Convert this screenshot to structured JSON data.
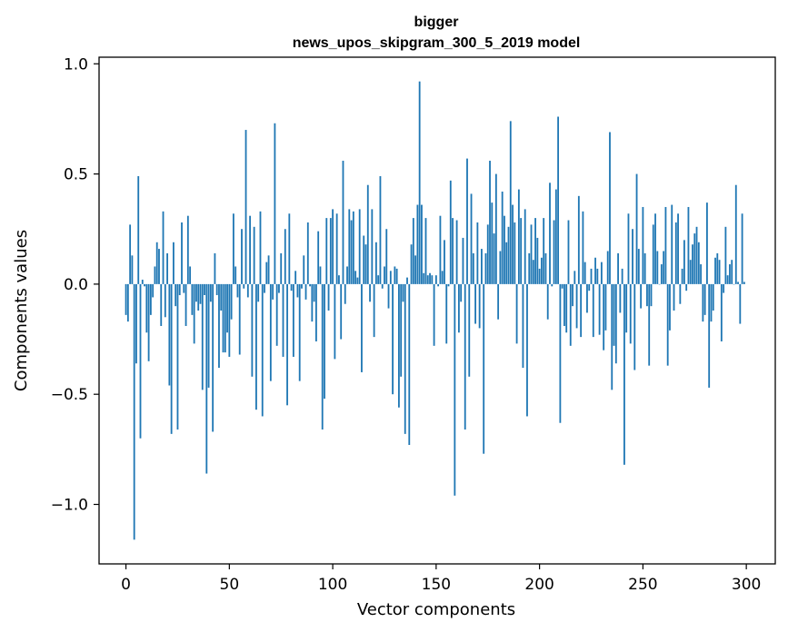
{
  "chart_data": {
    "type": "bar",
    "title": [
      "bigger",
      "news_upos_skipgram_300_5_2019 model"
    ],
    "xlabel": "Vector components",
    "ylabel": "Components values",
    "xlim": [
      -13,
      314
    ],
    "ylim": [
      -1.27,
      1.03
    ],
    "x_ticks": [
      0,
      50,
      100,
      150,
      200,
      250,
      300
    ],
    "x_tick_labels": [
      "0",
      "50",
      "100",
      "150",
      "200",
      "250",
      "300"
    ],
    "y_ticks": [
      -1.0,
      -0.5,
      0.0,
      0.5,
      1.0
    ],
    "y_tick_labels": [
      "−1.0",
      "−0.5",
      "0.0",
      "0.5",
      "1.0"
    ],
    "bar_color": "#1f77b4",
    "series": [
      {
        "name": "Components values",
        "values": [
          -0.14,
          -0.17,
          0.27,
          0.13,
          -1.16,
          -0.36,
          0.49,
          -0.7,
          0.02,
          -0.01,
          -0.22,
          -0.35,
          -0.14,
          -0.06,
          0.08,
          0.19,
          0.16,
          -0.19,
          0.33,
          -0.15,
          0.14,
          -0.46,
          -0.68,
          0.19,
          -0.1,
          -0.66,
          -0.05,
          0.28,
          -0.04,
          -0.19,
          0.31,
          0.08,
          -0.14,
          -0.27,
          -0.08,
          -0.12,
          -0.09,
          -0.48,
          -0.05,
          -0.86,
          -0.47,
          -0.08,
          -0.67,
          0.14,
          -0.05,
          -0.38,
          -0.12,
          -0.31,
          -0.31,
          -0.22,
          -0.33,
          -0.16,
          0.32,
          0.08,
          -0.06,
          -0.32,
          0.25,
          -0.02,
          0.7,
          -0.06,
          0.31,
          -0.42,
          0.26,
          -0.57,
          -0.08,
          0.33,
          -0.6,
          -0.04,
          0.1,
          0.13,
          -0.44,
          -0.07,
          0.73,
          -0.28,
          -0.04,
          0.14,
          -0.33,
          0.25,
          -0.55,
          0.32,
          -0.03,
          -0.33,
          0.06,
          -0.06,
          -0.44,
          -0.02,
          0.13,
          -0.07,
          0.28,
          -0.01,
          -0.17,
          -0.08,
          -0.26,
          0.24,
          0.08,
          -0.66,
          -0.52,
          0.3,
          -0.12,
          0.3,
          0.34,
          -0.34,
          0.32,
          0.04,
          -0.25,
          0.56,
          -0.09,
          0.08,
          0.34,
          0.29,
          0.33,
          0.06,
          0.03,
          0.34,
          -0.4,
          0.22,
          0.18,
          0.45,
          -0.08,
          0.34,
          -0.24,
          0.19,
          0.04,
          0.49,
          -0.02,
          0.08,
          0.25,
          -0.11,
          0.06,
          -0.5,
          0.08,
          0.07,
          -0.56,
          -0.42,
          -0.08,
          -0.68,
          0.03,
          -0.73,
          0.18,
          0.3,
          0.13,
          0.36,
          0.92,
          0.36,
          0.05,
          0.3,
          0.04,
          0.05,
          0.04,
          -0.28,
          0.04,
          -0.01,
          0.31,
          0.06,
          0.2,
          -0.27,
          -0.01,
          0.47,
          0.3,
          -0.96,
          0.29,
          -0.22,
          -0.08,
          0.21,
          -0.66,
          0.57,
          -0.42,
          0.41,
          0.14,
          -0.18,
          0.28,
          -0.2,
          0.16,
          -0.77,
          0.14,
          0.27,
          0.56,
          0.37,
          0.23,
          0.5,
          -0.16,
          0.15,
          0.42,
          0.31,
          0.19,
          0.26,
          0.74,
          0.36,
          0.28,
          -0.27,
          0.43,
          0.3,
          -0.38,
          0.34,
          -0.6,
          0.14,
          0.27,
          0.11,
          0.3,
          0.21,
          0.07,
          0.12,
          0.3,
          0.14,
          -0.16,
          0.46,
          -0.01,
          0.29,
          0.43,
          0.76,
          -0.63,
          -0.02,
          -0.19,
          -0.22,
          0.29,
          -0.28,
          -0.1,
          0.06,
          -0.2,
          0.4,
          -0.24,
          0.33,
          0.1,
          -0.13,
          -0.03,
          0.07,
          -0.24,
          0.12,
          0.07,
          -0.23,
          0.1,
          -0.3,
          -0.21,
          0.15,
          0.69,
          -0.48,
          -0.28,
          -0.36,
          0.14,
          -0.13,
          0.07,
          -0.82,
          -0.22,
          0.32,
          -0.27,
          0.25,
          -0.39,
          0.5,
          0.16,
          -0.11,
          0.35,
          0.14,
          -0.1,
          -0.37,
          -0.1,
          0.27,
          0.32,
          0.15,
          0.0,
          0.09,
          0.15,
          0.35,
          -0.37,
          -0.21,
          0.36,
          -0.12,
          0.28,
          0.32,
          -0.09,
          0.07,
          0.2,
          -0.03,
          0.35,
          0.11,
          0.18,
          0.23,
          0.26,
          0.19,
          0.09,
          -0.17,
          -0.14,
          0.37,
          -0.47,
          -0.17,
          -0.12,
          0.12,
          0.14,
          0.11,
          -0.26,
          -0.04,
          0.26,
          0.04,
          0.09,
          0.11,
          0.0,
          0.45,
          0.01,
          -0.18,
          0.32,
          0.01
        ]
      }
    ]
  }
}
